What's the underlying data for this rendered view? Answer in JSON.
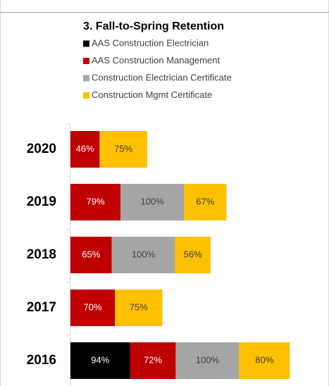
{
  "chart_data": {
    "type": "stacked-barh",
    "title": "3. Fall-to-Spring Retention",
    "categories": [
      "2020",
      "2019",
      "2018",
      "2017",
      "2016"
    ],
    "series": [
      {
        "name": "AAS Construction Electrician",
        "color": "#000000",
        "values": [
          null,
          null,
          null,
          null,
          94
        ],
        "value_labels": [
          null,
          null,
          null,
          null,
          "94%"
        ]
      },
      {
        "name": "AAS Construction Management",
        "color": "#c00000",
        "values": [
          46,
          79,
          65,
          70,
          72
        ],
        "value_labels": [
          "46%",
          "79%",
          "65%",
          "70%",
          "72%"
        ]
      },
      {
        "name": "Construction Electrician Certificate",
        "color": "#a5a5a5",
        "values": [
          null,
          100,
          100,
          null,
          100
        ],
        "value_labels": [
          null,
          "100%",
          "100%",
          null,
          "100%"
        ]
      },
      {
        "name": "Construction Mgmt Certificate",
        "color": "#ffc000",
        "values": [
          75,
          67,
          56,
          75,
          80
        ],
        "value_labels": [
          "75%",
          "67%",
          "56%",
          "75%",
          "80%"
        ]
      }
    ]
  }
}
